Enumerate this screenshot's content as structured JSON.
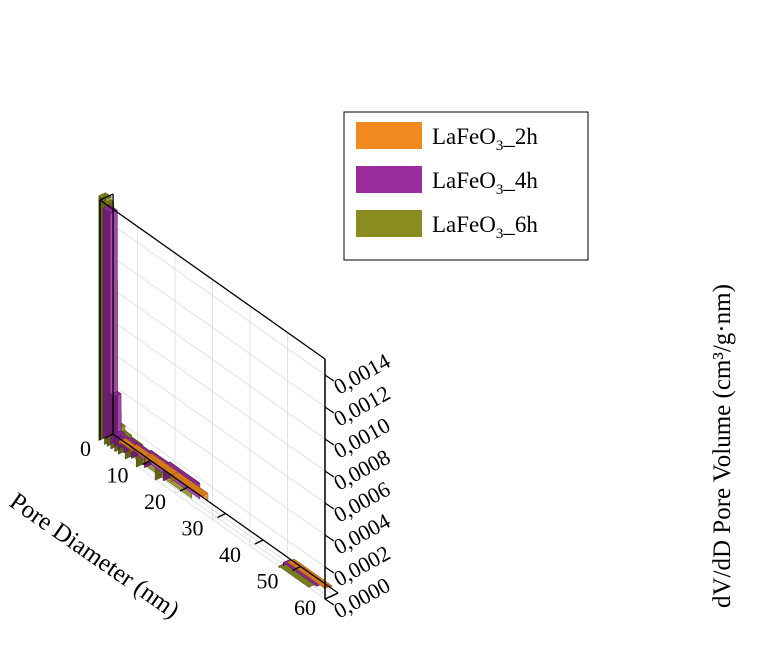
{
  "chart_data": {
    "type": "bar3d",
    "title": "",
    "xlabel": "Pore Diameter (nm)",
    "ylabel": "dV/dD Pore Volume (cm³/g·nm)",
    "x_ticks": [
      "0",
      "10",
      "20",
      "30",
      "40",
      "50",
      "60"
    ],
    "y_ticks": [
      "0,0000",
      "0,0002",
      "0,0004",
      "0,0006",
      "0,0008",
      "0,0010",
      "0,0012",
      "0,0014"
    ],
    "xlim": [
      0,
      60
    ],
    "ylim": [
      0,
      0.0015
    ],
    "grid": true,
    "legend_position": "top-right",
    "series": [
      {
        "name": "LaFeO3_2h",
        "legend_main": "LaFeO",
        "legend_sub": "3",
        "legend_suffix": "_2h",
        "color": "#f08a1f",
        "bars": [
          {
            "x0": 3,
            "x1": 6,
            "value": 2e-05
          },
          {
            "x0": 6,
            "x1": 10,
            "value": 3e-05
          },
          {
            "x0": 10,
            "x1": 17,
            "value": 4e-05
          },
          {
            "x0": 17,
            "x1": 25,
            "value": 4e-05
          },
          {
            "x0": 48,
            "x1": 58,
            "value": 1e-05
          }
        ]
      },
      {
        "name": "LaFeO3_4h",
        "legend_main": "LaFeO",
        "legend_sub": "3",
        "legend_suffix": "_4h",
        "color": "#9b2c9e",
        "bars": [
          {
            "x0": 0,
            "x1": 2,
            "value": 0.00144
          },
          {
            "x0": 2,
            "x1": 3,
            "value": 0.00031
          },
          {
            "x0": 3,
            "x1": 4,
            "value": 8e-05
          },
          {
            "x0": 4,
            "x1": 5.5,
            "value": 7e-05
          },
          {
            "x0": 5.5,
            "x1": 7.5,
            "value": 8e-05
          },
          {
            "x0": 7.5,
            "x1": 11,
            "value": 8e-05
          },
          {
            "x0": 11,
            "x1": 16,
            "value": 9e-05
          },
          {
            "x0": 16,
            "x1": 24,
            "value": 0.0001
          },
          {
            "x0": 48,
            "x1": 57,
            "value": 2e-05
          }
        ]
      },
      {
        "name": "LaFeO3_6h",
        "legend_main": "LaFeO",
        "legend_sub": "3",
        "legend_suffix": "_6h",
        "color": "#8b8c20",
        "bars": [
          {
            "x0": 0,
            "x1": 1.5,
            "value": 0.00153
          },
          {
            "x0": 1.5,
            "x1": 2.2,
            "value": 0.00151
          },
          {
            "x0": 2.2,
            "x1": 3.2,
            "value": 0.00103
          },
          {
            "x0": 3.2,
            "x1": 4.2,
            "value": 0.00023
          },
          {
            "x0": 4.2,
            "x1": 5.2,
            "value": 0.00016
          },
          {
            "x0": 5.2,
            "x1": 7,
            "value": 0.00013
          },
          {
            "x0": 7,
            "x1": 10,
            "value": 0.00012
          },
          {
            "x0": 10,
            "x1": 15,
            "value": 0.00011
          },
          {
            "x0": 15,
            "x1": 23,
            "value": 8e-05
          },
          {
            "x0": 48,
            "x1": 56,
            "value": 1e-05
          }
        ]
      }
    ]
  }
}
